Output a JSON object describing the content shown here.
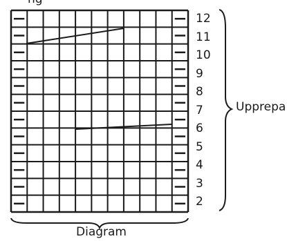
{
  "header_fragment": "ng",
  "grid": {
    "rows": 12,
    "cols": 11,
    "edge_symbol": "purl"
  },
  "row_labels": [
    "12",
    "11",
    "10",
    "9",
    "8",
    "7",
    "6",
    "5",
    "4",
    "3",
    "2"
  ],
  "side_label": "Upprepa",
  "bottom_label": "Diagram",
  "colors": {
    "line": "#1a1a1a",
    "background": "#ffffff"
  }
}
